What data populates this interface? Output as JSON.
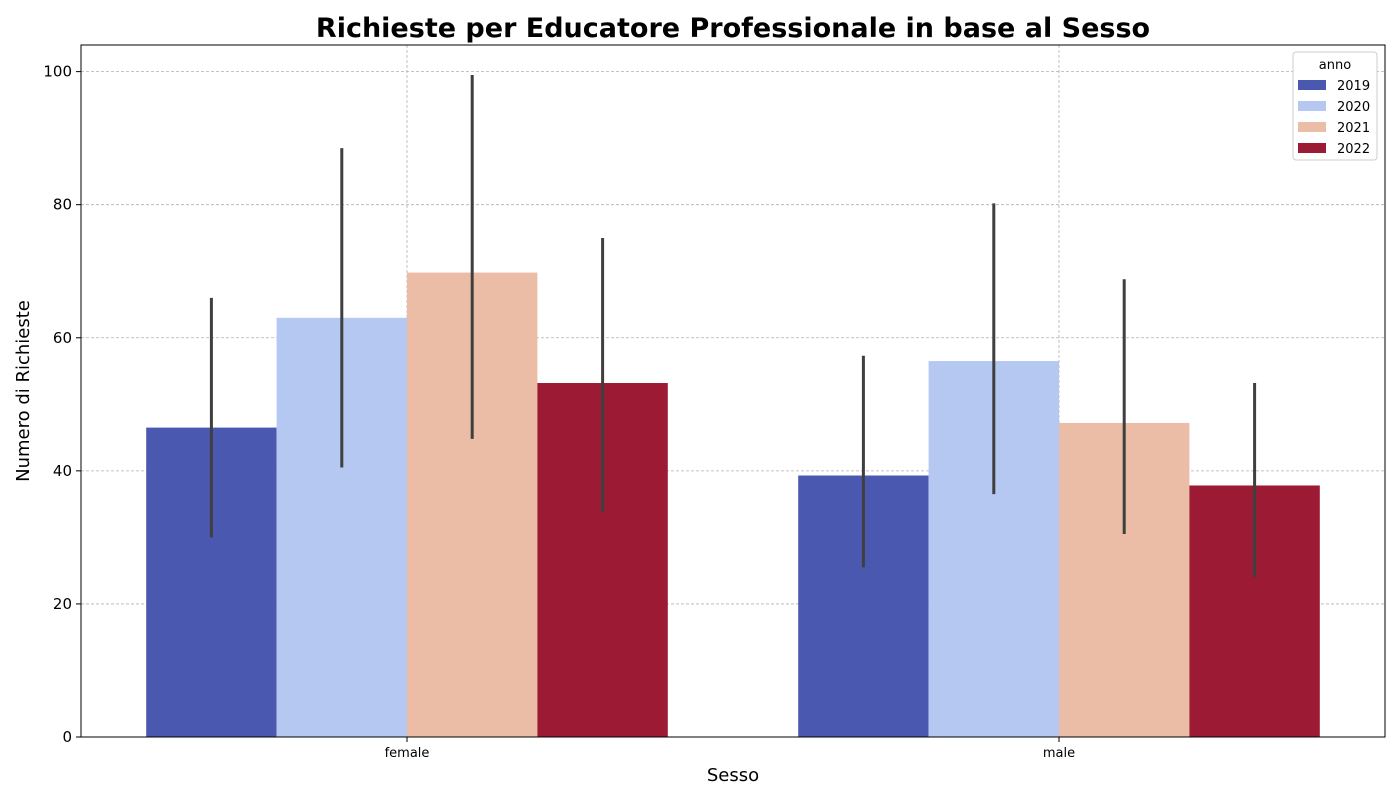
{
  "chart_data": {
    "type": "bar",
    "title": "Richieste per Educatore Professionale in base al Sesso",
    "xlabel": "Sesso",
    "ylabel": "Numero di Richieste",
    "categories": [
      "female",
      "male"
    ],
    "ylim": [
      0,
      104
    ],
    "yticks": [
      0,
      20,
      40,
      60,
      80,
      100
    ],
    "grid": true,
    "legend": {
      "title": "anno",
      "placement": "top-right"
    },
    "series": [
      {
        "name": "2019",
        "color": "#4b58b0",
        "values": [
          46.5,
          39.3
        ],
        "error_low": [
          30,
          25.5
        ],
        "error_high": [
          66,
          57.3
        ]
      },
      {
        "name": "2020",
        "color": "#b4c8f2",
        "values": [
          63.0,
          56.5
        ],
        "error_low": [
          40.5,
          36.5
        ],
        "error_high": [
          88.5,
          80.2
        ]
      },
      {
        "name": "2021",
        "color": "#ebbca6",
        "values": [
          69.8,
          47.2
        ],
        "error_low": [
          44.8,
          30.5
        ],
        "error_high": [
          99.5,
          68.8
        ]
      },
      {
        "name": "2022",
        "color": "#9c1a34",
        "values": [
          53.2,
          37.8
        ],
        "error_low": [
          33.8,
          24.0
        ],
        "error_high": [
          75.0,
          53.2
        ]
      }
    ]
  }
}
